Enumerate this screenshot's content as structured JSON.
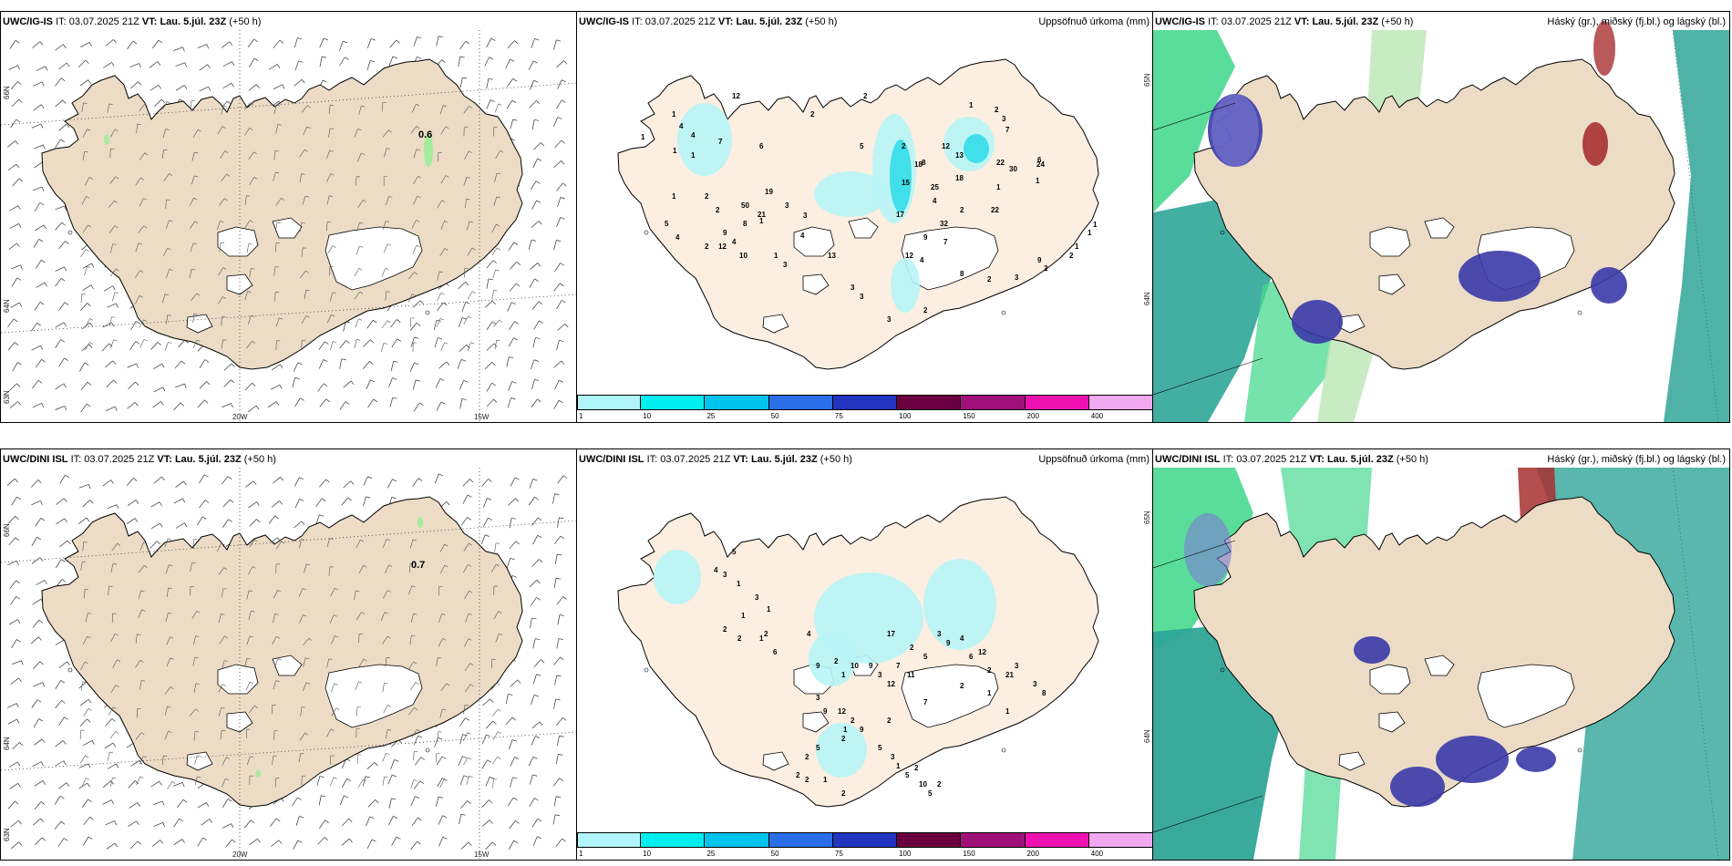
{
  "panels": [
    {
      "model": "UWC/IG-IS",
      "it_label": "IT:",
      "it": "03.07.2025 21Z",
      "vt_label": "VT:",
      "vt": "Lau. 5.júl. 23Z",
      "lead": "(+50 h)",
      "right": "",
      "marker": "0.6",
      "lat_labels": [
        "66N",
        "64N",
        "63N"
      ],
      "lon_labels": [
        "20W",
        "15W"
      ]
    },
    {
      "model": "UWC/IG-IS",
      "it_label": "IT:",
      "it": "03.07.2025 21Z",
      "vt_label": "VT:",
      "vt": "Lau. 5.júl. 23Z",
      "lead": "(+50 h)",
      "right": "Uppsöfnuð úrkoma (mm)",
      "lat_labels": [
        "65N",
        "64N"
      ],
      "values": [
        "12",
        "1",
        "4",
        "1",
        "4",
        "7",
        "1",
        "1",
        "6",
        "2",
        "2",
        "5",
        "2",
        "12",
        "18",
        "8",
        "15",
        "18",
        "1",
        "2",
        "3",
        "7",
        "25",
        "13",
        "22",
        "30",
        "24",
        "6",
        "1",
        "4",
        "1",
        "2",
        "22",
        "32",
        "17",
        "9",
        "7",
        "4",
        "12",
        "13",
        "4",
        "3",
        "3",
        "19",
        "21",
        "8",
        "9",
        "12",
        "10",
        "4",
        "50",
        "1",
        "2",
        "2",
        "1",
        "5",
        "4",
        "2",
        "1",
        "3",
        "3",
        "3",
        "3",
        "2",
        "8",
        "2",
        "3",
        "9",
        "2",
        "2",
        "1",
        "1",
        "1"
      ]
    },
    {
      "model": "UWC/IG-IS",
      "it_label": "IT:",
      "it": "03.07.2025 21Z",
      "vt_label": "VT:",
      "vt": "Lau. 5.júl. 23Z",
      "lead": "(+50 h)",
      "right": "Háský (gr.), miðský (fj.bl.) og lágský (bl.)"
    },
    {
      "model": "UWC/DINI ISL",
      "it_label": "IT:",
      "it": "03.07.2025 21Z",
      "vt_label": "VT:",
      "vt": "Lau. 5.júl. 23Z",
      "lead": "(+50 h)",
      "right": "",
      "marker": "0.7",
      "lat_labels": [
        "66N",
        "64N",
        "63N"
      ],
      "lon_labels": [
        "20W",
        "15W"
      ]
    },
    {
      "model": "UWC/DINI ISL",
      "it_label": "IT:",
      "it": "03.07.2025 21Z",
      "vt_label": "VT:",
      "vt": "Lau. 5.júl. 23Z",
      "lead": "(+50 h)",
      "right": "Uppsöfnuð úrkoma (mm)",
      "lat_labels": [
        "65N",
        "64N"
      ],
      "values": [
        "5",
        "4",
        "3",
        "1",
        "3",
        "1",
        "2",
        "2",
        "1",
        "1",
        "2",
        "6",
        "4",
        "9",
        "2",
        "1",
        "10",
        "9",
        "3",
        "12",
        "7",
        "11",
        "17",
        "2",
        "5",
        "3",
        "9",
        "4",
        "6",
        "12",
        "2",
        "21",
        "3",
        "3",
        "8",
        "3",
        "9",
        "12",
        "2",
        "1",
        "9",
        "5",
        "3",
        "1",
        "2",
        "5",
        "10",
        "5",
        "2",
        "2",
        "2",
        "5",
        "2",
        "2",
        "2",
        "1",
        "2",
        "7",
        "2",
        "1",
        "1"
      ]
    },
    {
      "model": "UWC/DINI ISL",
      "it_label": "IT:",
      "it": "03.07.2025 21Z",
      "vt_label": "VT:",
      "vt": "Lau. 5.júl. 23Z",
      "lead": "(+50 h)",
      "right": "Háský (gr.), miðský (fj.bl.) og lágský (bl.)"
    }
  ],
  "colorbar": {
    "ticks": [
      "1",
      "10",
      "25",
      "50",
      "75",
      "100",
      "150",
      "200",
      "400"
    ],
    "colors": [
      "#b0f5f8",
      "#00eef0",
      "#00c4ee",
      "#2a6ee8",
      "#2234c0",
      "#6a0040",
      "#a0107a",
      "#ee10b0",
      "#f0a8ee"
    ]
  },
  "colors": {
    "land_wind": "#ecdcc6",
    "land_precip": "#fcefe2",
    "precip_light": "#b8f4f6",
    "precip_med": "#32dde8",
    "cloud_high": "#2fa598",
    "cloud_mid": "#3a3aa8",
    "cloud_mid_light": "#7b7bd4",
    "cloud_low": "#48d890",
    "cloud_light_green": "#bce6b4",
    "cloud_red": "#a83030"
  }
}
